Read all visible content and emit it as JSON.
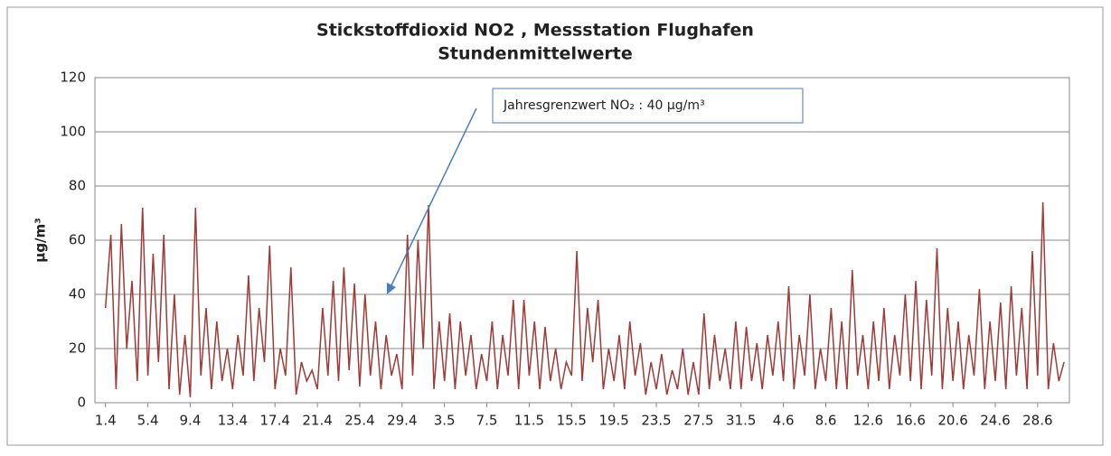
{
  "chart_data": {
    "type": "line",
    "title": [
      "Stickstoffdioxid NO2 , Messstation Flughafen",
      "Stundenmittelwerte"
    ],
    "ylabel": "µg/m³",
    "annotation": "Jahresgrenzwert NO₂ : 40 µg/m³",
    "ylim": [
      0,
      120
    ],
    "yticks": [
      0,
      20,
      40,
      60,
      80,
      100,
      120
    ],
    "grid": true,
    "xlim": [
      -1,
      91
    ],
    "xticks": [
      {
        "value": 0,
        "label": "1.4"
      },
      {
        "value": 4,
        "label": "5.4"
      },
      {
        "value": 8,
        "label": "9.4"
      },
      {
        "value": 12,
        "label": "13.4"
      },
      {
        "value": 16,
        "label": "17.4"
      },
      {
        "value": 20,
        "label": "21.4"
      },
      {
        "value": 24,
        "label": "25.4"
      },
      {
        "value": 28,
        "label": "29.4"
      },
      {
        "value": 32,
        "label": "3.5"
      },
      {
        "value": 36,
        "label": "7.5"
      },
      {
        "value": 40,
        "label": "11.5"
      },
      {
        "value": 44,
        "label": "15.5"
      },
      {
        "value": 48,
        "label": "19.5"
      },
      {
        "value": 52,
        "label": "23.5"
      },
      {
        "value": 56,
        "label": "27.5"
      },
      {
        "value": 60,
        "label": "31.5"
      },
      {
        "value": 64,
        "label": "4.6"
      },
      {
        "value": 68,
        "label": "8.6"
      },
      {
        "value": 72,
        "label": "12.6"
      },
      {
        "value": 76,
        "label": "16.6"
      },
      {
        "value": 80,
        "label": "20.6"
      },
      {
        "value": 84,
        "label": "24.6"
      },
      {
        "value": 88,
        "label": "28.6"
      }
    ],
    "x": [
      0,
      0.5,
      1,
      1.5,
      2,
      2.5,
      3,
      3.5,
      4,
      4.5,
      5,
      5.5,
      6,
      6.5,
      7,
      7.5,
      8,
      8.5,
      9,
      9.5,
      10,
      10.5,
      11,
      11.5,
      12,
      12.5,
      13,
      13.5,
      14,
      14.5,
      15,
      15.5,
      16,
      16.5,
      17,
      17.5,
      18,
      18.5,
      19,
      19.5,
      20,
      20.5,
      21,
      21.5,
      22,
      22.5,
      23,
      23.5,
      24,
      24.5,
      25,
      25.5,
      26,
      26.5,
      27,
      27.5,
      28,
      28.5,
      29,
      29.5,
      30,
      30.5,
      31,
      31.5,
      32,
      32.5,
      33,
      33.5,
      34,
      34.5,
      35,
      35.5,
      36,
      36.5,
      37,
      37.5,
      38,
      38.5,
      39,
      39.5,
      40,
      40.5,
      41,
      41.5,
      42,
      42.5,
      43,
      43.5,
      44,
      44.5,
      45,
      45.5,
      46,
      46.5,
      47,
      47.5,
      48,
      48.5,
      49,
      49.5,
      50,
      50.5,
      51,
      51.5,
      52,
      52.5,
      53,
      53.5,
      54,
      54.5,
      55,
      55.5,
      56,
      56.5,
      57,
      57.5,
      58,
      58.5,
      59,
      59.5,
      60,
      60.5,
      61,
      61.5,
      62,
      62.5,
      63,
      63.5,
      64,
      64.5,
      65,
      65.5,
      66,
      66.5,
      67,
      67.5,
      68,
      68.5,
      69,
      69.5,
      70,
      70.5,
      71,
      71.5,
      72,
      72.5,
      73,
      73.5,
      74,
      74.5,
      75,
      75.5,
      76,
      76.5,
      77,
      77.5,
      78,
      78.5,
      79,
      79.5,
      80,
      80.5,
      81,
      81.5,
      82,
      82.5,
      83,
      83.5,
      84,
      84.5,
      85,
      85.5,
      86,
      86.5,
      87,
      87.5,
      88,
      88.5,
      89,
      89.5,
      90,
      90.5
    ],
    "series": [
      {
        "color": "#9e3a38",
        "values": [
          35,
          62,
          5,
          66,
          20,
          45,
          8,
          72,
          10,
          55,
          15,
          62,
          5,
          40,
          3,
          25,
          2,
          72,
          10,
          35,
          5,
          30,
          8,
          20,
          5,
          25,
          10,
          47,
          8,
          35,
          15,
          58,
          5,
          20,
          10,
          50,
          3,
          15,
          8,
          12,
          5,
          35,
          10,
          45,
          8,
          50,
          12,
          44,
          6,
          40,
          10,
          30,
          5,
          25,
          10,
          18,
          5,
          62,
          10,
          60,
          20,
          73,
          5,
          30,
          8,
          33,
          5,
          30,
          10,
          25,
          5,
          18,
          8,
          30,
          5,
          25,
          10,
          38,
          5,
          38,
          10,
          30,
          5,
          28,
          8,
          20,
          5,
          15,
          10,
          56,
          8,
          35,
          15,
          38,
          5,
          20,
          8,
          25,
          5,
          30,
          10,
          22,
          3,
          15,
          5,
          18,
          3,
          12,
          5,
          20,
          3,
          15,
          3,
          33,
          5,
          25,
          8,
          20,
          5,
          30,
          5,
          28,
          8,
          22,
          5,
          25,
          10,
          30,
          8,
          43,
          5,
          25,
          10,
          40,
          5,
          20,
          8,
          35,
          5,
          30,
          5,
          49,
          10,
          25,
          5,
          30,
          8,
          35,
          5,
          25,
          10,
          40,
          8,
          45,
          5,
          38,
          10,
          57,
          5,
          35,
          8,
          30,
          5,
          25,
          10,
          42,
          5,
          30,
          8,
          37,
          5,
          43,
          10,
          35,
          5,
          56,
          10,
          74,
          5,
          22,
          8,
          15
        ]
      }
    ]
  }
}
